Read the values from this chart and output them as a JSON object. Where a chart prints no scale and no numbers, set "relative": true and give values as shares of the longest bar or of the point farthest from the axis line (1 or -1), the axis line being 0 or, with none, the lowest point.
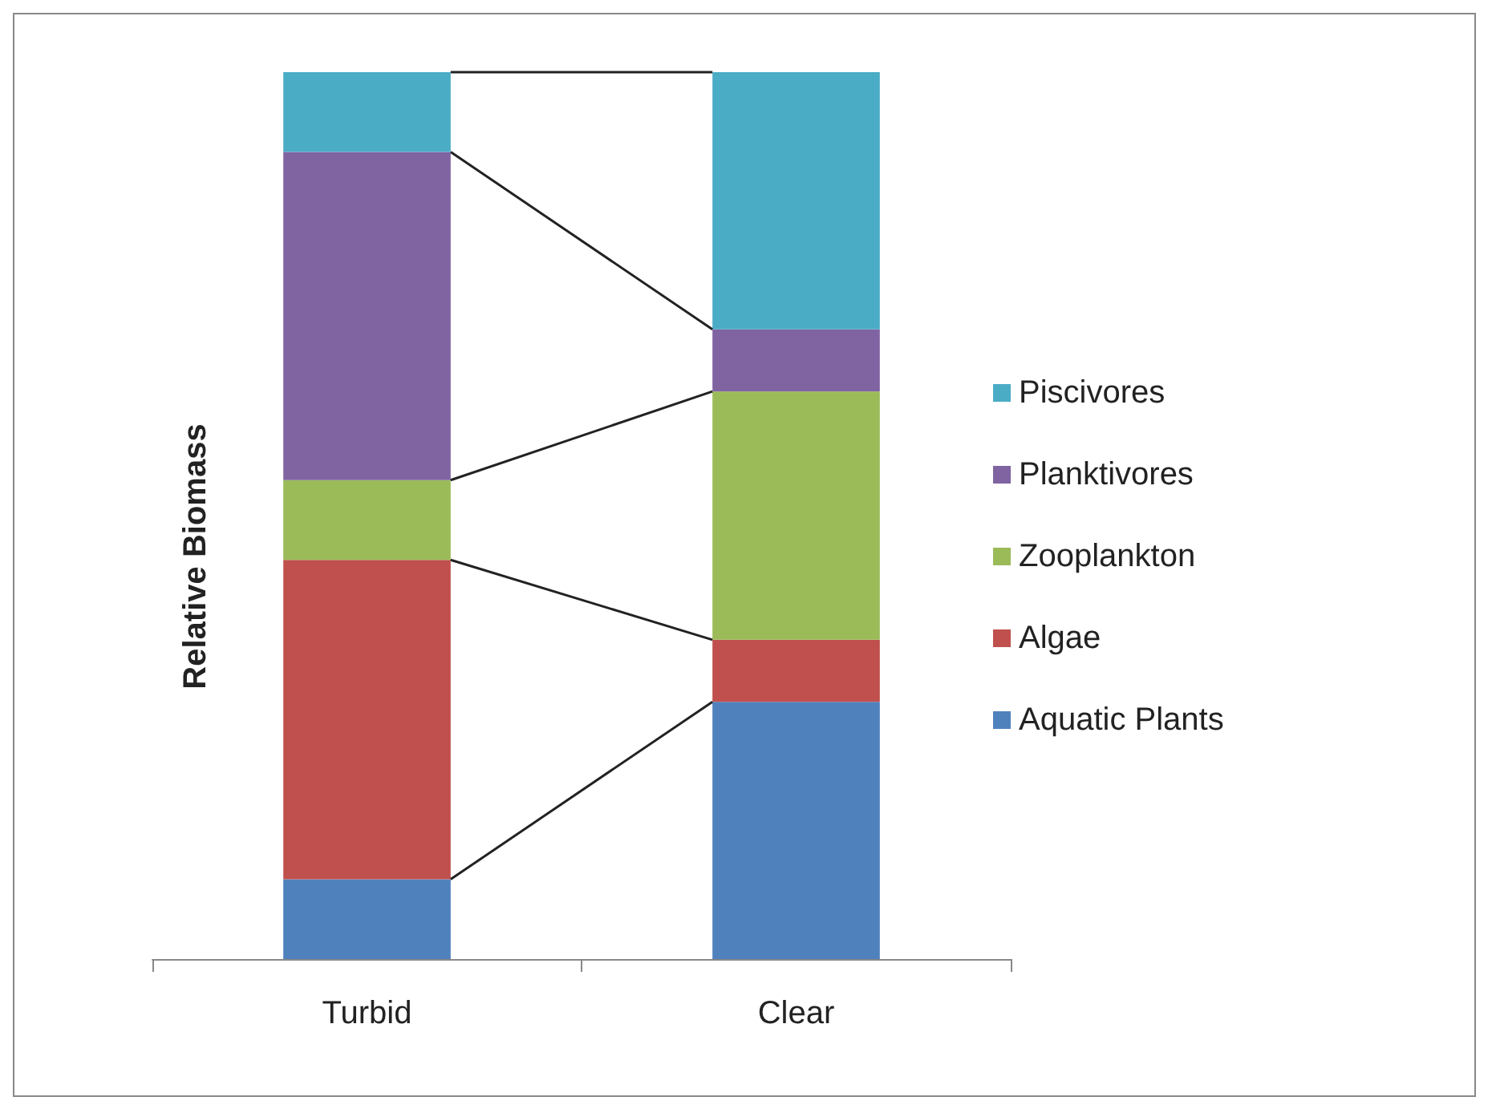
{
  "chart_data": {
    "type": "bar",
    "stacked": true,
    "relative": true,
    "ylabel": "Relative Biomass",
    "categories": [
      "Turbid",
      "Clear"
    ],
    "series": [
      {
        "name": "Aquatic Plants",
        "color": "#4f81bd",
        "values": [
          0.09,
          0.29
        ]
      },
      {
        "name": "Algae",
        "color": "#c0504d",
        "values": [
          0.36,
          0.07
        ]
      },
      {
        "name": "Zooplankton",
        "color": "#9bbb59",
        "values": [
          0.09,
          0.28
        ]
      },
      {
        "name": "Planktivores",
        "color": "#8064a2",
        "values": [
          0.37,
          0.07
        ]
      },
      {
        "name": "Piscivores",
        "color": "#4bacc6",
        "values": [
          0.09,
          0.29
        ]
      }
    ],
    "legend": "right"
  }
}
